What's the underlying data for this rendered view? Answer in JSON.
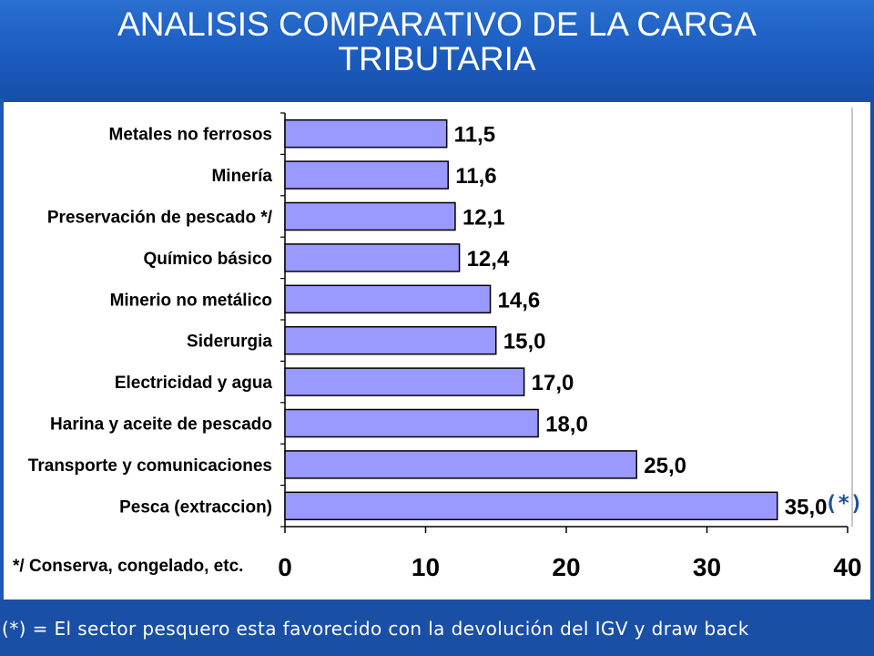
{
  "header": {
    "title_line1": "ANALISIS COMPARATIVO DE LA CARGA",
    "title_line2": "TRIBUTARIA"
  },
  "colors": {
    "bar_fill": "#9999ff",
    "bar_stroke": "#000000",
    "background": "#1a4fa6",
    "annotation": "#1d4f9c"
  },
  "chart_data": {
    "type": "bar",
    "orientation": "horizontal",
    "categories": [
      "Metales no ferrosos",
      "Minería",
      "Preservación de pescado */",
      "Químico básico",
      "Minerio no metálico",
      "Siderurgia",
      "Electricidad y agua",
      "Harina y aceite de pescado",
      "Transporte y comunicaciones",
      "Pesca (extraccion)"
    ],
    "values": [
      11.5,
      11.6,
      12.1,
      12.4,
      14.6,
      15.0,
      17.0,
      18.0,
      25.0,
      35.0
    ],
    "value_labels": [
      "11,5",
      "11,6",
      "12,1",
      "12,4",
      "14,6",
      "15,0",
      "17,0",
      "18,0",
      "25,0",
      "35,0"
    ],
    "xlim": [
      0,
      40
    ],
    "xticks": [
      "0",
      "10",
      "20",
      "30",
      "40"
    ],
    "grid": false,
    "legend": "none"
  },
  "annotations": {
    "asterisk_mark": "(*)",
    "conserva_note": "*/ Conserva, congelado, etc."
  },
  "footnote": "(*) = El sector pesquero esta favorecido con la devolución del IGV y draw back"
}
